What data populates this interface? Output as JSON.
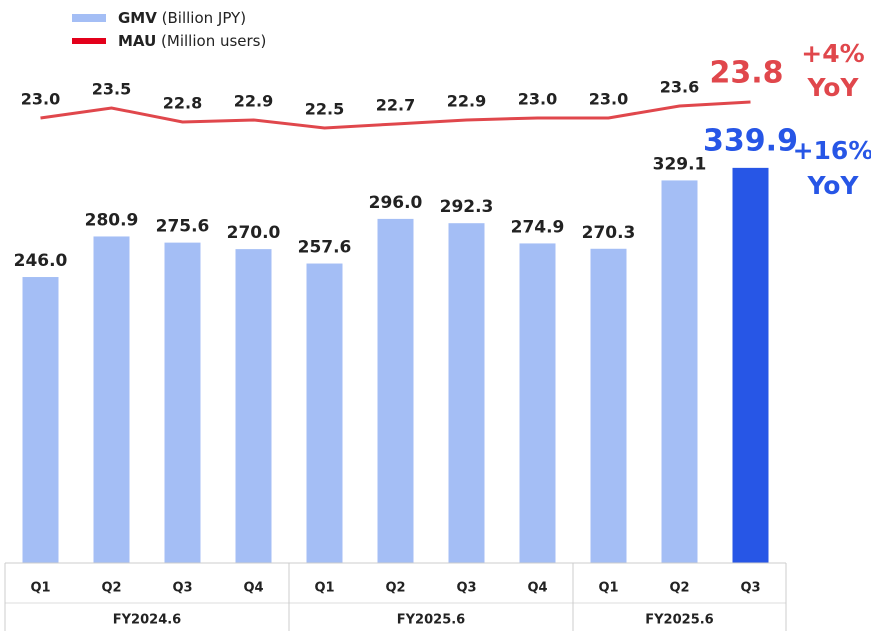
{
  "chart_data": {
    "type": "bar-line",
    "groups": [
      {
        "label": "FY2024.6",
        "categories": [
          "Q1",
          "Q2",
          "Q3",
          "Q4"
        ]
      },
      {
        "label": "FY2025.6",
        "categories": [
          "Q1",
          "Q2",
          "Q3",
          "Q4"
        ]
      },
      {
        "label": "FY2025.6",
        "categories": [
          "Q1",
          "Q2",
          "Q3"
        ]
      }
    ],
    "series": [
      {
        "name": "GMV",
        "unit": "(Billion JPY)",
        "type": "bar",
        "color": "#a4bef5",
        "highlight_color": "#2756e6",
        "values": [
          246.0,
          280.9,
          275.6,
          270.0,
          257.6,
          296.0,
          292.3,
          274.9,
          270.3,
          329.1,
          339.9
        ],
        "value_labels": [
          "246.0",
          "280.9",
          "275.6",
          "270.0",
          "257.6",
          "296.0",
          "292.3",
          "274.9",
          "270.3",
          "329.1",
          "339.9"
        ]
      },
      {
        "name": "MAU",
        "unit": "(Million users)",
        "type": "line",
        "axis": "y2",
        "color": "#e0474c",
        "highlight_color": "#e0474c",
        "values": [
          23.0,
          23.5,
          22.8,
          22.9,
          22.5,
          22.7,
          22.9,
          23.0,
          23.0,
          23.6,
          23.8
        ],
        "value_labels": [
          "23.0",
          "23.5",
          "22.8",
          "22.9",
          "22.5",
          "22.7",
          "22.9",
          "23.0",
          "23.0",
          "23.6",
          "23.8"
        ]
      }
    ],
    "ylim": [
      0,
      400
    ],
    "y2lim": [
      0.7,
      24
    ],
    "annotations": [
      {
        "lines": [
          "+4%",
          "YoY"
        ],
        "color": "#e0474c"
      },
      {
        "lines": [
          "+16%",
          "YoY"
        ],
        "color": "#2756e6"
      }
    ]
  }
}
